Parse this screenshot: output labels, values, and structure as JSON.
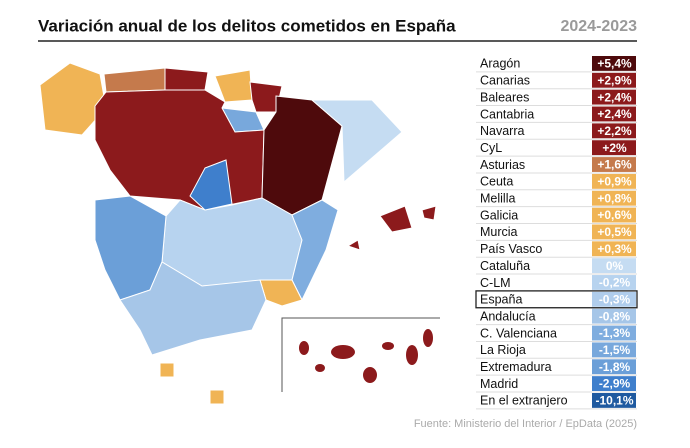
{
  "header": {
    "title": "Variación anual de los delitos cometidos en España",
    "period": "2024-2023"
  },
  "table": {
    "rows": [
      {
        "name": "Aragón",
        "value": "+5,4%",
        "color": "#4e0a0c"
      },
      {
        "name": "Canarias",
        "value": "+2,9%",
        "color": "#8c1a1c"
      },
      {
        "name": "Baleares",
        "value": "+2,4%",
        "color": "#8c1a1c"
      },
      {
        "name": "Cantabria",
        "value": "+2,4%",
        "color": "#8c1a1c"
      },
      {
        "name": "Navarra",
        "value": "+2,2%",
        "color": "#8c1a1c"
      },
      {
        "name": "CyL",
        "value": "+2%",
        "color": "#8c1a1c"
      },
      {
        "name": "Asturias",
        "value": "+1,6%",
        "color": "#c57a4c"
      },
      {
        "name": "Ceuta",
        "value": "+0,9%",
        "color": "#f0b455"
      },
      {
        "name": "Melilla",
        "value": "+0,8%",
        "color": "#f0b455"
      },
      {
        "name": "Galicia",
        "value": "+0,6%",
        "color": "#f0b455"
      },
      {
        "name": "Murcia",
        "value": "+0,5%",
        "color": "#f0b455"
      },
      {
        "name": "País Vasco",
        "value": "+0,3%",
        "color": "#f0b455"
      },
      {
        "name": "Cataluña",
        "value": "0%",
        "color": "#c5dcf2"
      },
      {
        "name": "C-LM",
        "value": "-0,2%",
        "color": "#b7d3ef"
      },
      {
        "name": "España",
        "value": "-0,3%",
        "color": "#b0cdec",
        "boxed": true
      },
      {
        "name": "Andalucía",
        "value": "-0,8%",
        "color": "#a6c6e8"
      },
      {
        "name": "C. Valenciana",
        "value": "-1,3%",
        "color": "#7faddf"
      },
      {
        "name": "La Rioja",
        "value": "-1,5%",
        "color": "#78a8dc"
      },
      {
        "name": "Extremadura",
        "value": "-1,8%",
        "color": "#6b9fd8"
      },
      {
        "name": "Madrid",
        "value": "-2,9%",
        "color": "#3f7fcc"
      },
      {
        "name": "En el extranjero",
        "value": "-10,1%",
        "color": "#1f5aa0"
      }
    ]
  },
  "footer": {
    "source": "Fuente: Ministerio del Interior / EpData (2025)"
  }
}
